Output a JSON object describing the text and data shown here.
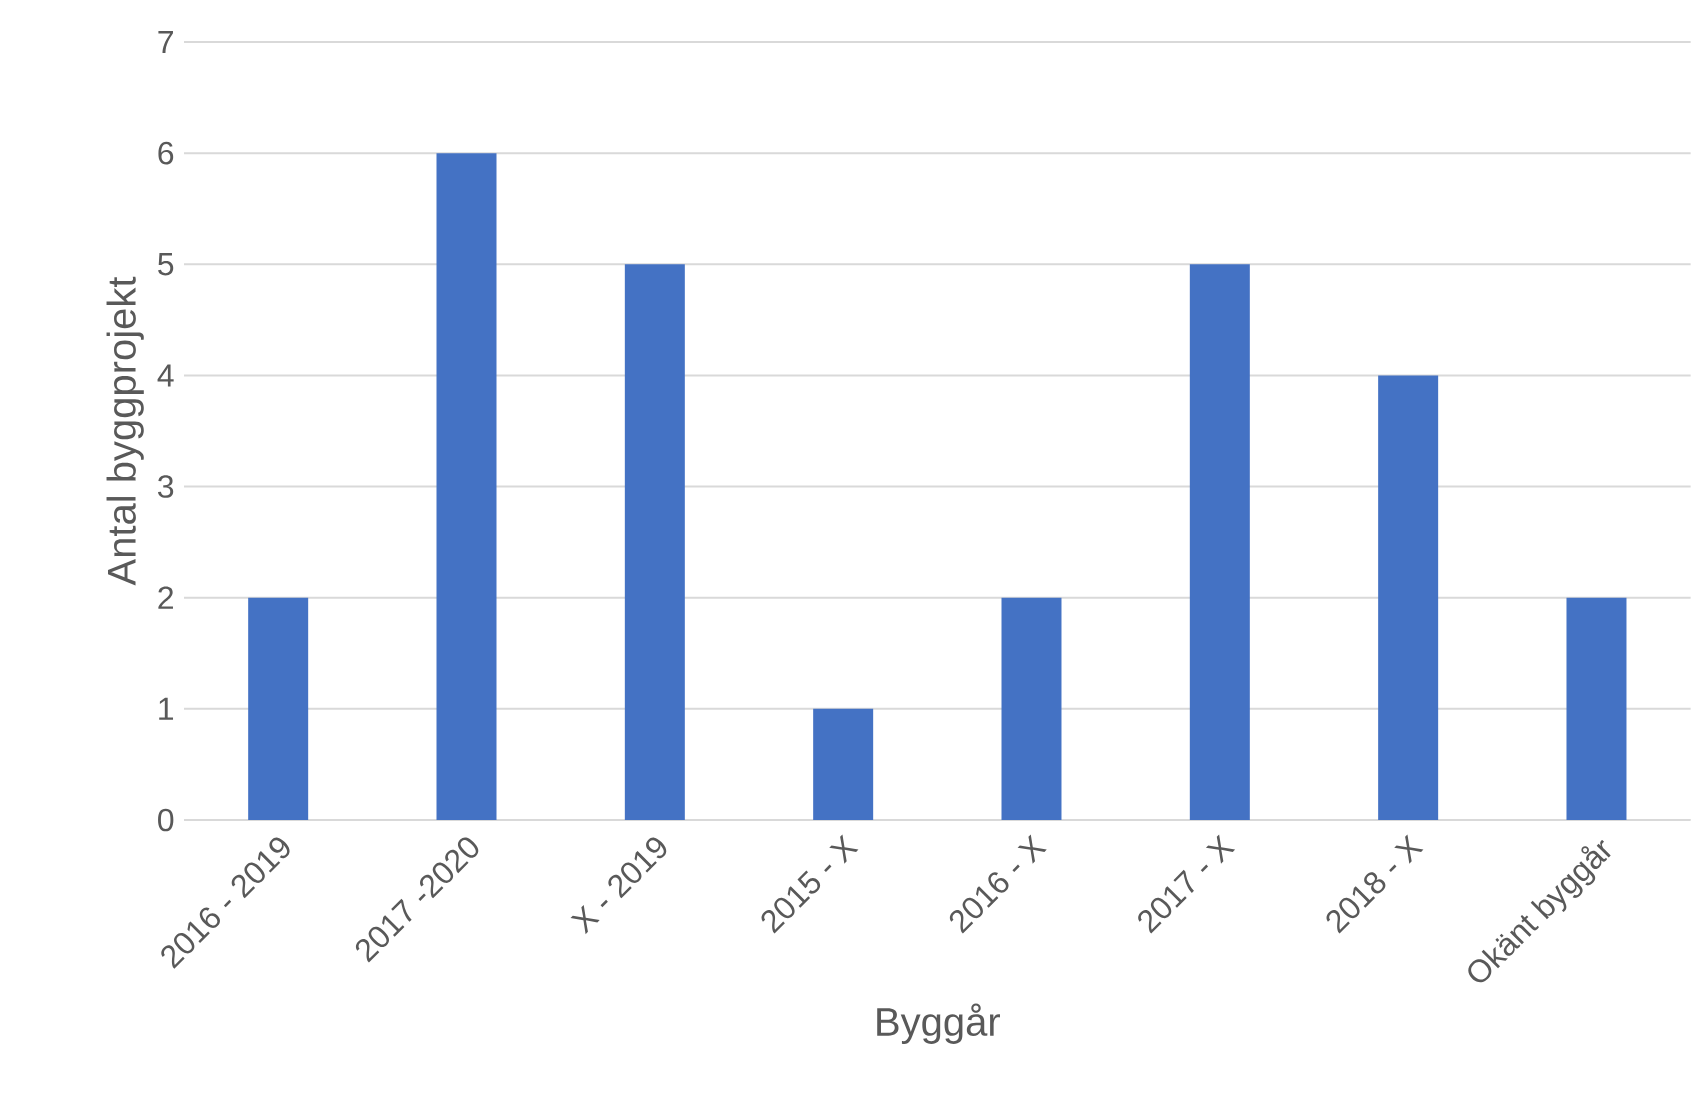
{
  "chart_data": {
    "type": "bar",
    "xlabel": "Byggår",
    "ylabel": "Antal byggprojekt",
    "categories": [
      "2016 - 2019",
      "2017 -2020",
      "X - 2019",
      "2015 - X",
      "2016 - X",
      "2017 - X",
      "2018 - X",
      "Okänt byggår"
    ],
    "values": [
      2,
      6,
      5,
      1,
      2,
      5,
      4,
      2
    ],
    "color": "#4472c4",
    "ylim": [
      0,
      7
    ],
    "yticks": [
      0,
      1,
      2,
      3,
      4,
      5,
      6,
      7
    ],
    "grid": "y"
  }
}
